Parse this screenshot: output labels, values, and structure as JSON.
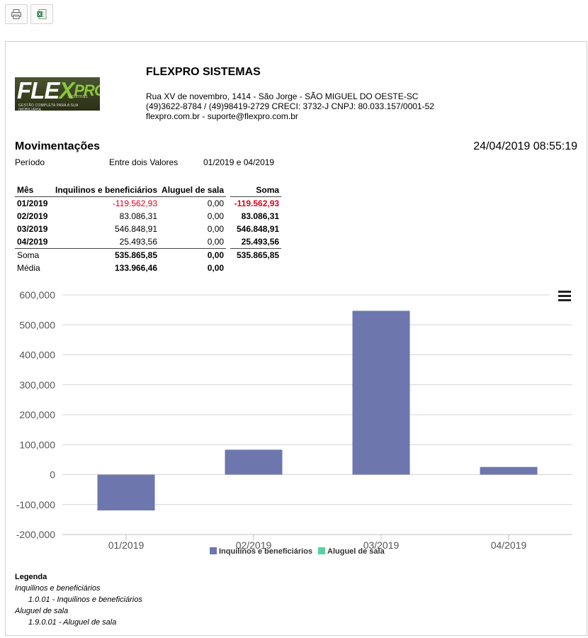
{
  "toolbar": {
    "print_icon": "printer-icon",
    "excel_icon": "excel-icon"
  },
  "header": {
    "logo_main": "FLE",
    "logo_x": "X",
    "logo_pro": "PRO",
    "logo_sub": "Sistemas",
    "logo_tagline": "GESTÃO COMPLETA PARA A SUA IMOBILIÁRIA",
    "company": "FLEXPRO SISTEMAS",
    "address_line1": "Rua XV de novembro, 1414 - São Jorge - SÃO MIGUEL DO OESTE-SC",
    "address_line2": "(49)3622-8784 / (49)98419-2729 CRECI: 3732-J CNPJ: 80.033.157/0001-52",
    "address_line3": "flexpro.com.br - suporte@flexpro.com.br"
  },
  "report": {
    "title": "Movimentações",
    "datetime": "24/04/2019 08:55:19",
    "period_label": "Período",
    "period_type": "Entre dois Valores",
    "period_value": "01/2019 e 04/2019"
  },
  "table": {
    "headers": [
      "Mês",
      "Inquilinos e beneficiários",
      "Aluguel de sala",
      "Soma"
    ],
    "rows": [
      {
        "month": "01/2019",
        "inq": "-119.562,93",
        "alug": "0,00",
        "soma": "-119.562,93"
      },
      {
        "month": "02/2019",
        "inq": "83.086,31",
        "alug": "0,00",
        "soma": "83.086,31"
      },
      {
        "month": "03/2019",
        "inq": "546.848,91",
        "alug": "0,00",
        "soma": "546.848,91"
      },
      {
        "month": "04/2019",
        "inq": "25.493,56",
        "alug": "0,00",
        "soma": "25.493,56"
      }
    ],
    "sum": {
      "label": "Soma",
      "inq": "535.865,85",
      "alug": "0,00",
      "soma": "535.865,85"
    },
    "avg": {
      "label": "Média",
      "inq": "133.966,46",
      "alug": "0,00"
    }
  },
  "chart_data": {
    "type": "bar",
    "categories": [
      "01/2019",
      "02/2019",
      "03/2019",
      "04/2019"
    ],
    "series": [
      {
        "name": "Inquilinos e beneficiários",
        "color": "#6d77ae",
        "values": [
          -119562.93,
          83086.31,
          546848.91,
          25493.56
        ]
      },
      {
        "name": "Aluguel de sala",
        "color": "#56d1a3",
        "values": [
          0,
          0,
          0,
          0
        ]
      }
    ],
    "ylim": [
      -200000,
      600000
    ],
    "yticks": [
      600000,
      500000,
      400000,
      300000,
      200000,
      100000,
      0,
      -100000,
      -200000
    ],
    "ytick_labels": [
      "600,000",
      "500,000",
      "400,000",
      "300,000",
      "200,000",
      "100,000",
      "0",
      "-100,000",
      "-200,000"
    ],
    "grid": true,
    "legend": "bottom"
  },
  "legend_section": {
    "title": "Legenda",
    "group1": "Inquilinos e beneficiários",
    "item1": "1.0.01 - Inquilinos e beneficiários",
    "group2": "Aluguel de sala",
    "item2": "1.9.0.01 - Aluguel de sala"
  }
}
